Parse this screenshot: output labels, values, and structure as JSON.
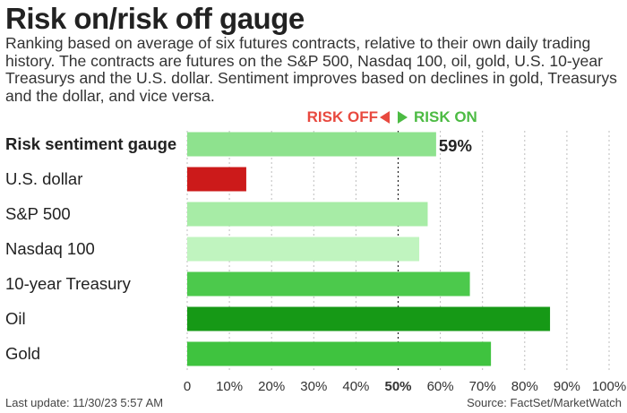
{
  "title": "Risk on/risk off gauge",
  "subtitle": "Ranking based on average of six futures contracts, relative to their own daily trading history. The contracts are futures on the S&P 500, Nasdaq 100, oil, gold, U.S. 10-year Treasurys and the U.S. dollar. Sentiment improves based on declines in gold, Treasurys and the dollar, and vice versa.",
  "legend": {
    "risk_off": "RISK OFF",
    "risk_on": "RISK ON"
  },
  "footer": {
    "updated": "Last update: 11/30/23 5:57 AM",
    "source": "Source: FactSet/MarketWatch"
  },
  "chart_data": {
    "type": "bar",
    "orientation": "horizontal",
    "categories": [
      "Risk sentiment gauge",
      "U.S. dollar",
      "S&P 500",
      "Nasdaq 100",
      "10-year Treasury",
      "Oil",
      "Gold"
    ],
    "values": [
      59,
      14,
      57,
      55,
      67,
      86,
      72
    ],
    "colors": [
      "#8ee28e",
      "#cc1a1a",
      "#a7eca6",
      "#c0f4bf",
      "#4cc94c",
      "#169916",
      "#3fc33f"
    ],
    "value_labels": [
      "59%",
      "",
      "",
      "",
      "",
      "",
      ""
    ],
    "xlim": [
      0,
      100
    ],
    "x_ticks": [
      "0",
      "10%",
      "20%",
      "30%",
      "40%",
      "50%",
      "60%",
      "70%",
      "80%",
      "90%",
      "100%"
    ],
    "grid": true,
    "emphasized_tick": "50%"
  }
}
